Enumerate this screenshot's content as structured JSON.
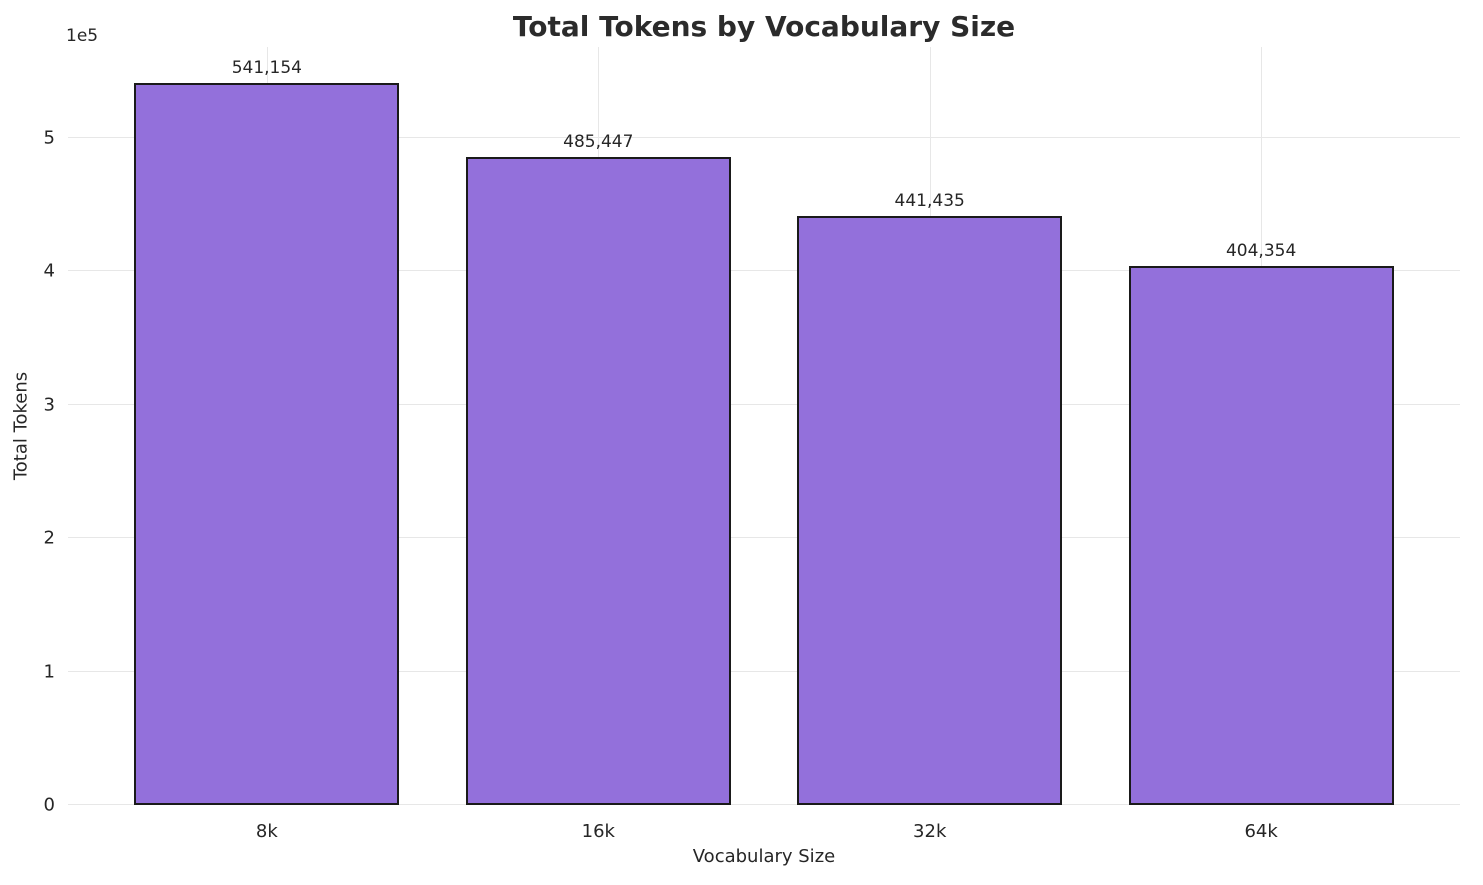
{
  "chart_data": {
    "type": "bar",
    "title": "Total Tokens by Vocabulary Size",
    "xlabel": "Vocabulary Size",
    "ylabel": "Total Tokens",
    "categories": [
      "8k",
      "16k",
      "32k",
      "64k"
    ],
    "values": [
      541154,
      485447,
      441435,
      404354
    ],
    "value_labels": [
      "541,154",
      "485,447",
      "441,435",
      "404,354"
    ],
    "ylim": [
      0,
      568212
    ],
    "yticks": [
      0,
      100000,
      200000,
      300000,
      400000,
      500000
    ],
    "ytick_labels": [
      "0",
      "1",
      "2",
      "3",
      "4",
      "5"
    ],
    "offset_text": "1e5",
    "grid": true,
    "legend": "none",
    "bar_color": "#9370DB",
    "bar_edge_color": "#1a1a1a",
    "background_color": "#ffffff",
    "gridline_color": "#e7e7e7"
  }
}
